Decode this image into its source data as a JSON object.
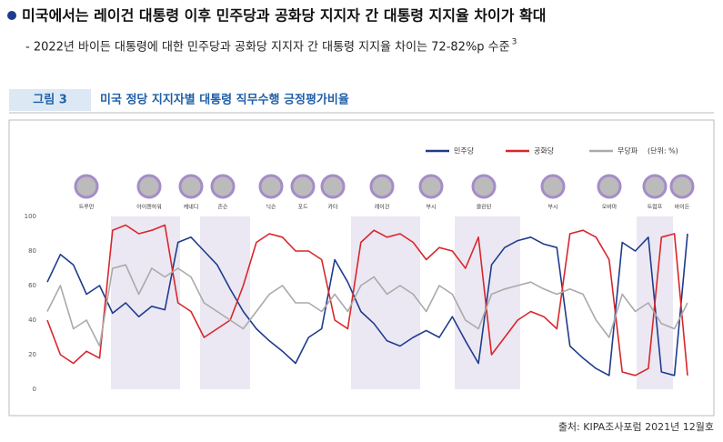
{
  "header": {
    "title": "미국에서는 레이건 대통령 이후 민주당과 공화당 지지자 간 대통령 지지율 차이가 확대",
    "subtitle": "- 2022년 바이든 대통령에 대한 민주당과 공화당 지지자 간 대통령 지지율 차이는 72-82%p 수준",
    "footnote_mark": "3"
  },
  "figure": {
    "label": "그림 3",
    "title": "미국 정당 지지자별 대통령 직무수행 긍정평가비율",
    "source": "출처: KIPA조사포럼 2021년 12월호"
  },
  "chart_data": {
    "type": "line",
    "unit": "(단위: %)",
    "presidents": [
      "트루먼",
      "아이젠하워",
      "케네디",
      "존슨",
      "닉슨",
      "포드",
      "카터",
      "레이건",
      "부시",
      "클린턴",
      "부시",
      "오바마",
      "트럼프",
      "바이든"
    ],
    "categories": [
      null,
      null,
      null,
      null,
      null,
      null,
      null,
      null,
      null,
      null,
      null,
      null,
      null,
      null,
      null,
      null,
      null,
      null,
      null,
      null,
      null,
      null,
      null,
      null,
      null,
      null,
      null,
      null,
      null,
      null,
      null,
      null,
      null,
      null,
      null,
      null,
      null,
      null,
      null,
      null,
      null,
      null,
      null,
      null,
      null,
      null,
      null,
      null,
      null,
      null
    ],
    "ylim": [
      0,
      100
    ],
    "yticks": [
      0,
      20,
      40,
      60,
      80,
      100
    ],
    "series": [
      {
        "name": "민주당",
        "color": "#1f3b8c",
        "values": [
          62,
          78,
          72,
          55,
          60,
          44,
          50,
          42,
          48,
          46,
          85,
          88,
          80,
          72,
          58,
          45,
          35,
          28,
          22,
          15,
          30,
          35,
          75,
          62,
          45,
          38,
          28,
          25,
          30,
          34,
          30,
          42,
          28,
          15,
          72,
          82,
          86,
          88,
          84,
          82,
          25,
          18,
          12,
          8,
          85,
          80,
          88,
          10,
          8,
          90
        ]
      },
      {
        "name": "공화당",
        "color": "#d9262b",
        "values": [
          40,
          20,
          15,
          22,
          18,
          92,
          95,
          90,
          92,
          95,
          50,
          45,
          30,
          35,
          40,
          60,
          85,
          90,
          88,
          80,
          80,
          75,
          40,
          35,
          85,
          92,
          88,
          90,
          85,
          75,
          82,
          80,
          70,
          88,
          20,
          30,
          40,
          45,
          42,
          35,
          90,
          92,
          88,
          75,
          10,
          8,
          12,
          88,
          90,
          8
        ]
      },
      {
        "name": "무당파",
        "color": "#aaaaaa",
        "values": [
          45,
          60,
          35,
          40,
          25,
          70,
          72,
          55,
          70,
          65,
          70,
          65,
          50,
          45,
          40,
          35,
          45,
          55,
          60,
          50,
          50,
          45,
          55,
          45,
          60,
          65,
          55,
          60,
          55,
          45,
          60,
          55,
          40,
          35,
          55,
          58,
          60,
          62,
          58,
          55,
          58,
          55,
          40,
          30,
          55,
          45,
          50,
          38,
          35,
          50
        ]
      }
    ]
  }
}
